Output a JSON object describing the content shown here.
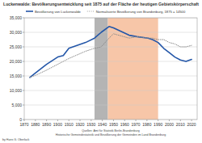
{
  "chart_data": {
    "type": "line",
    "title": "Luckenwalde: Bevölkerungsentwicklung seit 1875 auf der Fläche der heutigen Gebietskörperschaft",
    "x": [
      1875,
      1880,
      1890,
      1900,
      1905,
      1910,
      1925,
      1933,
      1939,
      1946,
      1950,
      1964,
      1971,
      1981,
      1985,
      1990,
      1995,
      2000,
      2005,
      2010,
      2015,
      2020
    ],
    "series": [
      {
        "name": "Bevölkerung von Luckenwalde",
        "color": "#2356a8",
        "line_style": "solid",
        "values": [
          14500,
          16000,
          19000,
          21500,
          22000,
          24500,
          26500,
          28000,
          30000,
          32000,
          31500,
          29000,
          28500,
          28000,
          27500,
          26500,
          24500,
          23000,
          21500,
          20500,
          20000,
          20700
        ]
      },
      {
        "name": "Normalisierte Bevölkerung von Brandenburg, 1875 = 14500",
        "color": "#8c8c8c",
        "line_style": "dotted",
        "values": [
          14500,
          15200,
          17000,
          19000,
          20000,
          21000,
          23500,
          24500,
          25000,
          28000,
          29500,
          28000,
          28500,
          28000,
          28000,
          27500,
          27500,
          26500,
          26000,
          25000,
          25000,
          25500
        ]
      }
    ],
    "xlim": [
      1870,
      2025
    ],
    "xticks": [
      1870,
      1880,
      1890,
      1900,
      1910,
      1920,
      1930,
      1940,
      1950,
      1960,
      1970,
      1980,
      1990,
      2000,
      2010,
      2020
    ],
    "ylim": [
      0,
      35000
    ],
    "yticks": [
      0,
      {
        "value": 5000,
        "label": "5,000"
      },
      {
        "value": 10000,
        "label": "10,000"
      },
      {
        "value": 15000,
        "label": "15,000"
      },
      {
        "value": 20000,
        "label": "20,000"
      },
      {
        "value": 25000,
        "label": "25,000"
      },
      {
        "value": 30000,
        "label": "30,000"
      },
      {
        "value": 35000,
        "label": "35,000"
      }
    ],
    "grid": true,
    "shaded_periods": [
      {
        "start": 1933,
        "end": 1945,
        "color": "#b4b4b4"
      },
      {
        "start": 1945,
        "end": 1990,
        "color": "#f7c6a8"
      }
    ],
    "source": [
      "Quellen: Amt für Statistik Berlin-Brandenburg",
      "Historische Gemeindestatistik und Bevölkerung der Gemeinden im Land Brandenburg"
    ],
    "author": "by Hans G. Oberlack"
  }
}
